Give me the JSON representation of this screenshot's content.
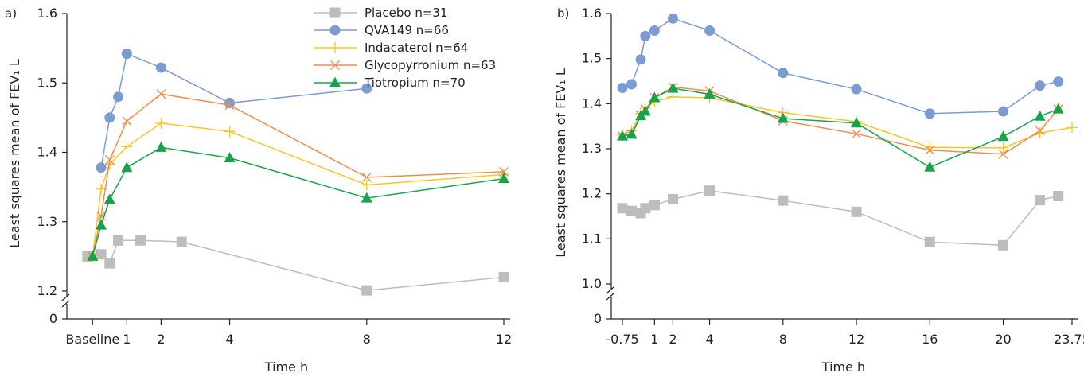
{
  "chart_data": [
    {
      "panel_label": "a)",
      "type": "line",
      "xlabel": "Time h",
      "ylabel": "Least squares mean of FEV₁ L",
      "x": [
        0,
        0.5,
        1,
        1.5,
        2,
        4,
        8,
        12
      ],
      "x_ticks": [
        0,
        1,
        2,
        4,
        8,
        12
      ],
      "x_tick_labels": [
        "Baseline",
        "1",
        "2",
        "4",
        "8",
        "12"
      ],
      "ylim": [
        1.2,
        1.6
      ],
      "y_ticks": [
        1.2,
        1.3,
        1.4,
        1.5,
        1.6
      ],
      "y_tick_labels": [
        "1.2",
        "1.3",
        "1.4",
        "1.5",
        "1.6"
      ],
      "y_zero_label": "0",
      "axis_break": true,
      "legend_position": "top-center",
      "series": [
        {
          "name": "Placebo n=31",
          "color": "#bdbdbd",
          "marker": "square",
          "x": [
            -0.15,
            0.25,
            0.5,
            0.75,
            1.4,
            2.6,
            8,
            12
          ],
          "values": [
            1.25,
            1.253,
            1.24,
            1.273,
            1.273,
            1.271,
            1.201,
            1.22
          ]
        },
        {
          "name": "QVA149 n=66",
          "color": "#7b9bd2",
          "marker": "circle",
          "x": [
            0.25,
            0.5,
            0.75,
            1,
            2,
            4,
            8,
            12
          ],
          "values": [
            1.378,
            1.45,
            1.48,
            1.542,
            1.522,
            1.471,
            1.492,
            null
          ]
        },
        {
          "name": "Indacaterol n=64",
          "color": "#f7c626",
          "marker": "plus",
          "x": [
            0,
            0.25,
            0.5,
            1,
            2,
            4,
            8,
            12
          ],
          "values": [
            1.25,
            1.347,
            1.383,
            1.408,
            1.442,
            1.43,
            1.353,
            1.368
          ]
        },
        {
          "name": "Glycopyrronium n=63",
          "color": "#ef8d4b",
          "marker": "x",
          "x": [
            0,
            0.25,
            0.5,
            1,
            2,
            4,
            8,
            12
          ],
          "values": [
            1.25,
            1.308,
            1.389,
            1.445,
            1.484,
            1.468,
            1.364,
            1.372
          ]
        },
        {
          "name": "Tiotropium n=70",
          "color": "#17a34a",
          "marker": "triangle",
          "x": [
            0,
            0.25,
            0.5,
            1,
            2,
            4,
            8,
            12
          ],
          "values": [
            1.25,
            1.295,
            1.332,
            1.378,
            1.407,
            1.392,
            1.334,
            1.362
          ]
        }
      ]
    },
    {
      "panel_label": "b)",
      "type": "line",
      "xlabel": "Time h",
      "ylabel": "Least squares mean of FEV₁ L",
      "x_ticks": [
        -0.75,
        1,
        2,
        4,
        8,
        12,
        16,
        20,
        23.75
      ],
      "x_tick_labels": [
        "-0.75",
        "1",
        "2",
        "4",
        "8",
        "12",
        "16",
        "20",
        "23.75"
      ],
      "ylim": [
        1.0,
        1.6
      ],
      "y_ticks": [
        1.0,
        1.1,
        1.2,
        1.3,
        1.4,
        1.5,
        1.6
      ],
      "y_tick_labels": [
        "1.0",
        "1.1",
        "1.2",
        "1.3",
        "1.4",
        "1.5",
        "1.6"
      ],
      "y_zero_label": "0",
      "axis_break": true,
      "series": [
        {
          "name": "Placebo n=31",
          "color": "#bdbdbd",
          "marker": "square",
          "x": [
            -0.75,
            -0.25,
            0.25,
            0.5,
            1,
            2,
            4,
            8,
            12,
            16,
            20,
            22,
            23
          ],
          "values": [
            1.168,
            1.162,
            1.157,
            1.168,
            1.175,
            1.188,
            1.207,
            1.185,
            1.16,
            1.093,
            1.086,
            1.186,
            1.195
          ]
        },
        {
          "name": "QVA149 n=66",
          "color": "#7b9bd2",
          "marker": "circle",
          "x": [
            -0.75,
            -0.25,
            0.25,
            0.5,
            1,
            2,
            4,
            8,
            12,
            16,
            20,
            22,
            23
          ],
          "values": [
            1.435,
            1.443,
            1.498,
            1.55,
            1.562,
            1.589,
            1.562,
            1.468,
            1.432,
            1.378,
            1.383,
            1.44,
            1.449
          ]
        },
        {
          "name": "Indacaterol n=64",
          "color": "#f7c626",
          "marker": "plus",
          "x": [
            -0.75,
            -0.25,
            0.25,
            0.5,
            1,
            2,
            4,
            8,
            12,
            16,
            20,
            22,
            23.75
          ],
          "values": [
            1.33,
            1.34,
            1.378,
            1.39,
            1.405,
            1.415,
            1.413,
            1.38,
            1.36,
            1.303,
            1.302,
            1.335,
            1.347
          ]
        },
        {
          "name": "Glycopyrronium n=63",
          "color": "#ef8d4b",
          "marker": "x",
          "x": [
            -0.75,
            -0.25,
            0.25,
            0.5,
            1,
            2,
            4,
            8,
            12,
            16,
            20,
            22,
            23
          ],
          "values": [
            1.328,
            1.332,
            1.373,
            1.388,
            1.413,
            1.437,
            1.428,
            1.362,
            1.333,
            1.297,
            1.288,
            1.34,
            1.388
          ]
        },
        {
          "name": "Tiotropium n=70",
          "color": "#17a34a",
          "marker": "triangle",
          "x": [
            -0.75,
            -0.25,
            0.25,
            0.5,
            1,
            2,
            4,
            8,
            12,
            16,
            20,
            22,
            23
          ],
          "values": [
            1.328,
            1.332,
            1.373,
            1.383,
            1.413,
            1.434,
            1.421,
            1.367,
            1.357,
            1.259,
            1.327,
            1.372,
            1.388
          ]
        }
      ]
    }
  ]
}
